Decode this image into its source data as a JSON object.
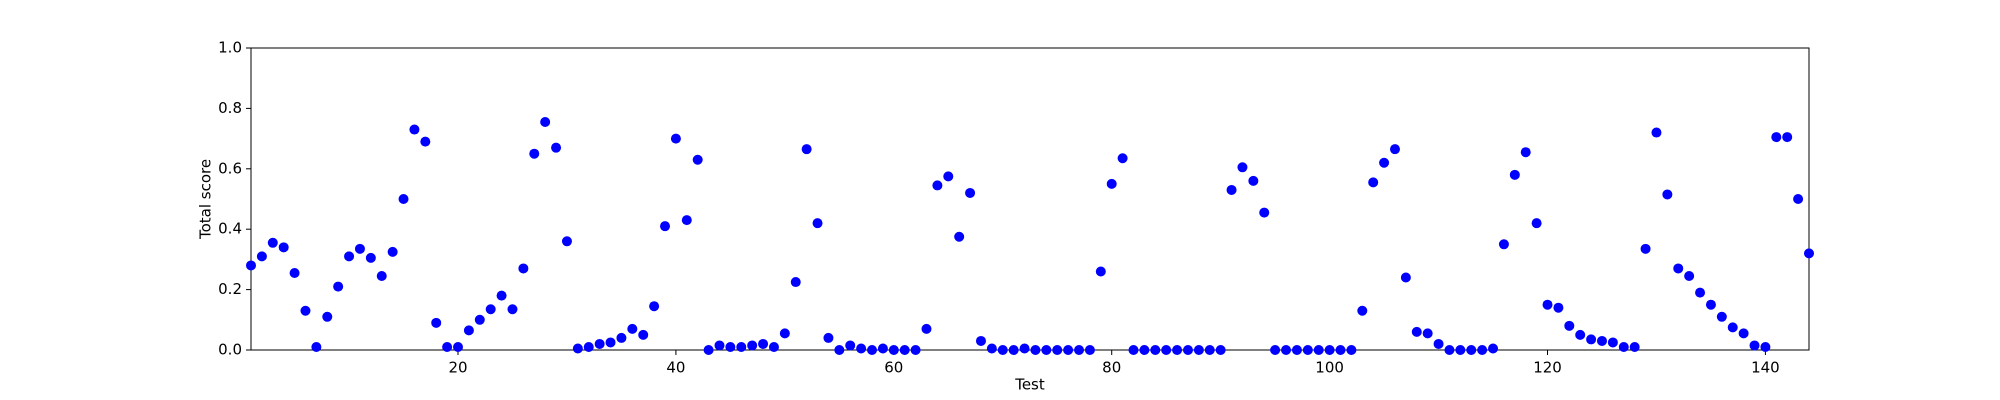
{
  "chart_data": {
    "type": "scatter",
    "xlabel": "Test",
    "ylabel": "Total score",
    "color": "#0000ff",
    "x": [
      1,
      2,
      3,
      4,
      5,
      6,
      7,
      8,
      9,
      10,
      11,
      12,
      13,
      14,
      15,
      16,
      17,
      18,
      19,
      20,
      21,
      22,
      23,
      24,
      25,
      26,
      27,
      28,
      29,
      30,
      31,
      32,
      33,
      34,
      35,
      36,
      37,
      38,
      39,
      40,
      41,
      42,
      43,
      44,
      45,
      46,
      47,
      48,
      49,
      50,
      51,
      52,
      53,
      54,
      55,
      56,
      57,
      58,
      59,
      60,
      61,
      62,
      63,
      64,
      65,
      66,
      67,
      68,
      69,
      70,
      71,
      72,
      73,
      74,
      75,
      76,
      77,
      78,
      79,
      80,
      81,
      82,
      83,
      84,
      85,
      86,
      87,
      88,
      89,
      90,
      91,
      92,
      93,
      94,
      95,
      96,
      97,
      98,
      99,
      100,
      101,
      102,
      103,
      104,
      105,
      106,
      107,
      108,
      109,
      110,
      111,
      112,
      113,
      114,
      115,
      116,
      117,
      118,
      119,
      120,
      121,
      122,
      123,
      124,
      125,
      126,
      127,
      128,
      129,
      130,
      131,
      132,
      133,
      134,
      135,
      136,
      137,
      138,
      139,
      140,
      141,
      142,
      143,
      144
    ],
    "values": [
      0.28,
      0.31,
      0.355,
      0.34,
      0.255,
      0.13,
      0.01,
      0.11,
      0.21,
      0.31,
      0.335,
      0.305,
      0.245,
      0.325,
      0.5,
      0.73,
      0.69,
      0.09,
      0.01,
      0.01,
      0.065,
      0.1,
      0.135,
      0.18,
      0.135,
      0.27,
      0.65,
      0.755,
      0.67,
      0.36,
      0.005,
      0.01,
      0.02,
      0.025,
      0.04,
      0.07,
      0.05,
      0.145,
      0.41,
      0.7,
      0.43,
      0.63,
      0.0,
      0.015,
      0.01,
      0.01,
      0.015,
      0.02,
      0.01,
      0.055,
      0.225,
      0.665,
      0.42,
      0.04,
      0.0,
      0.015,
      0.005,
      0.0,
      0.005,
      0.0,
      0.0,
      0.0,
      0.07,
      0.545,
      0.575,
      0.375,
      0.52,
      0.03,
      0.005,
      0.0,
      0.0,
      0.005,
      0.0,
      0.0,
      0.0,
      0.0,
      0.0,
      0.0,
      0.26,
      0.55,
      0.635,
      0.0,
      0.0,
      0.0,
      0.0,
      0.0,
      0.0,
      0.0,
      0.0,
      0.0,
      0.53,
      0.605,
      0.56,
      0.455,
      0.0,
      0.0,
      0.0,
      0.0,
      0.0,
      0.0,
      0.0,
      0.0,
      0.13,
      0.555,
      0.62,
      0.665,
      0.24,
      0.06,
      0.055,
      0.02,
      0.0,
      0.0,
      0.0,
      0.0,
      0.005,
      0.35,
      0.58,
      0.655,
      0.42,
      0.15,
      0.14,
      0.08,
      0.05,
      0.035,
      0.03,
      0.025,
      0.01,
      0.01,
      0.335,
      0.72,
      0.515,
      0.27,
      0.245,
      0.19,
      0.15,
      0.11,
      0.075,
      0.055,
      0.015,
      0.01,
      0.705,
      0.705,
      0.5,
      0.32
    ],
    "xlim": [
      1,
      144
    ],
    "xticks": [
      20,
      40,
      60,
      80,
      100,
      120,
      140
    ],
    "ylim": [
      0,
      1
    ],
    "yticks": [
      {
        "value": 0,
        "label": "0.0"
      },
      0.2,
      0.4,
      0.6,
      0.8,
      {
        "value": 1,
        "label": "1.0"
      }
    ],
    "grid": false
  }
}
